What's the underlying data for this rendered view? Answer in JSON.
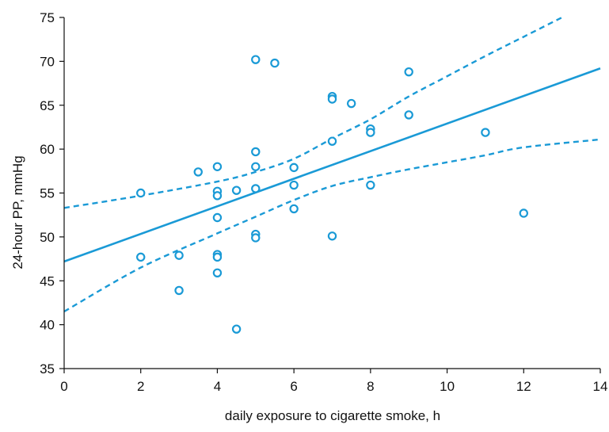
{
  "chart_data": {
    "type": "scatter",
    "title": "",
    "xlabel": "daily exposure to cigarette smoke, h",
    "ylabel": "24-hour PP, mmHg",
    "xlim": [
      0,
      14
    ],
    "ylim": [
      35,
      75
    ],
    "xticks": [
      0,
      2,
      4,
      6,
      8,
      10,
      12,
      14
    ],
    "yticks": [
      35,
      40,
      45,
      50,
      55,
      60,
      65,
      70,
      75
    ],
    "grid": false,
    "legend": "none",
    "color": "#1a9ad6",
    "points": [
      {
        "x": 2,
        "y": 55.0
      },
      {
        "x": 2,
        "y": 47.7
      },
      {
        "x": 3,
        "y": 47.9
      },
      {
        "x": 3,
        "y": 43.9
      },
      {
        "x": 3.5,
        "y": 57.4
      },
      {
        "x": 4,
        "y": 58.0
      },
      {
        "x": 4,
        "y": 55.2
      },
      {
        "x": 4,
        "y": 54.7
      },
      {
        "x": 4,
        "y": 52.2
      },
      {
        "x": 4,
        "y": 48.0
      },
      {
        "x": 4,
        "y": 47.7
      },
      {
        "x": 4,
        "y": 45.9
      },
      {
        "x": 4.5,
        "y": 55.3
      },
      {
        "x": 4.5,
        "y": 39.5
      },
      {
        "x": 5,
        "y": 70.2
      },
      {
        "x": 5,
        "y": 59.7
      },
      {
        "x": 5,
        "y": 58.0
      },
      {
        "x": 5,
        "y": 55.5
      },
      {
        "x": 5,
        "y": 50.3
      },
      {
        "x": 5,
        "y": 49.9
      },
      {
        "x": 5.5,
        "y": 69.8
      },
      {
        "x": 6,
        "y": 57.9
      },
      {
        "x": 6,
        "y": 55.9
      },
      {
        "x": 6,
        "y": 53.2
      },
      {
        "x": 7,
        "y": 66.0
      },
      {
        "x": 7,
        "y": 65.7
      },
      {
        "x": 7,
        "y": 60.9
      },
      {
        "x": 7,
        "y": 50.1
      },
      {
        "x": 7.5,
        "y": 65.2
      },
      {
        "x": 8,
        "y": 62.3
      },
      {
        "x": 8,
        "y": 61.9
      },
      {
        "x": 8,
        "y": 55.9
      },
      {
        "x": 9,
        "y": 68.8
      },
      {
        "x": 9,
        "y": 63.9
      },
      {
        "x": 11,
        "y": 61.9
      },
      {
        "x": 12,
        "y": 52.7
      }
    ],
    "regression_line": [
      [
        0,
        47.2
      ],
      [
        14,
        69.2
      ]
    ],
    "upper_confidence_band": [
      [
        0,
        53.3
      ],
      [
        2,
        54.7
      ],
      [
        4,
        56.3
      ],
      [
        5,
        57.4
      ],
      [
        6,
        58.9
      ],
      [
        7,
        61.2
      ],
      [
        8,
        63.4
      ],
      [
        9,
        66.0
      ],
      [
        10,
        68.3
      ],
      [
        11,
        70.6
      ],
      [
        12,
        72.8
      ],
      [
        13,
        75.0
      ]
    ],
    "lower_confidence_band": [
      [
        0,
        41.5
      ],
      [
        2,
        46.5
      ],
      [
        4,
        50.4
      ],
      [
        5,
        52.3
      ],
      [
        6,
        54.2
      ],
      [
        7,
        55.8
      ],
      [
        8,
        56.8
      ],
      [
        9,
        57.7
      ],
      [
        10,
        58.5
      ],
      [
        11,
        59.3
      ],
      [
        12,
        60.2
      ],
      [
        14,
        61.1
      ]
    ]
  }
}
